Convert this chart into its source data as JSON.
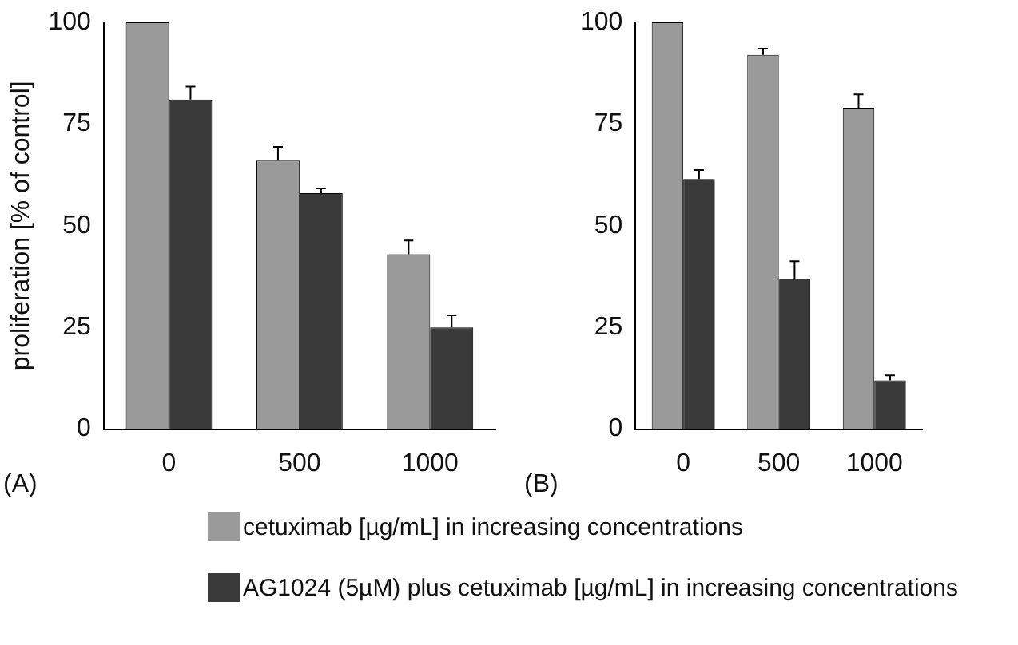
{
  "chart_data": [
    {
      "type": "bar",
      "ylabel": "proliferation [% of control]",
      "categories": [
        "0",
        "500",
        "1000"
      ],
      "ylim": [
        0,
        100
      ],
      "yticks": [
        0,
        25,
        50,
        75,
        100
      ],
      "grid": false,
      "legend": "bottom",
      "annotations": [
        "(A)"
      ],
      "series": [
        {
          "name": "cetuximab [µg/mL] in increasing concentrations",
          "color": "#9a9a9a",
          "values": [
            100,
            66,
            43
          ],
          "errors": [
            null,
            3.4,
            3.4
          ]
        },
        {
          "name": "AG1024 (5µM) plus cetuximab [µg/mL] in increasing concentrations",
          "color": "#3a3a3a",
          "values": [
            81,
            58,
            25
          ],
          "errors": [
            3.2,
            1.2,
            3
          ]
        }
      ]
    },
    {
      "type": "bar",
      "categories": [
        "0",
        "500",
        "1000"
      ],
      "ylim": [
        0,
        100
      ],
      "yticks": [
        0,
        25,
        50,
        75,
        100
      ],
      "grid": false,
      "legend": false,
      "annotations": [
        "(B)"
      ],
      "series": [
        {
          "color": "#9a9a9a",
          "values": [
            100,
            92,
            79
          ],
          "errors": [
            null,
            1.5,
            3.3
          ]
        },
        {
          "color": "#3a3a3a",
          "values": [
            61.5,
            37,
            12
          ],
          "errors": [
            2.2,
            4.3,
            1.2
          ]
        }
      ]
    }
  ]
}
